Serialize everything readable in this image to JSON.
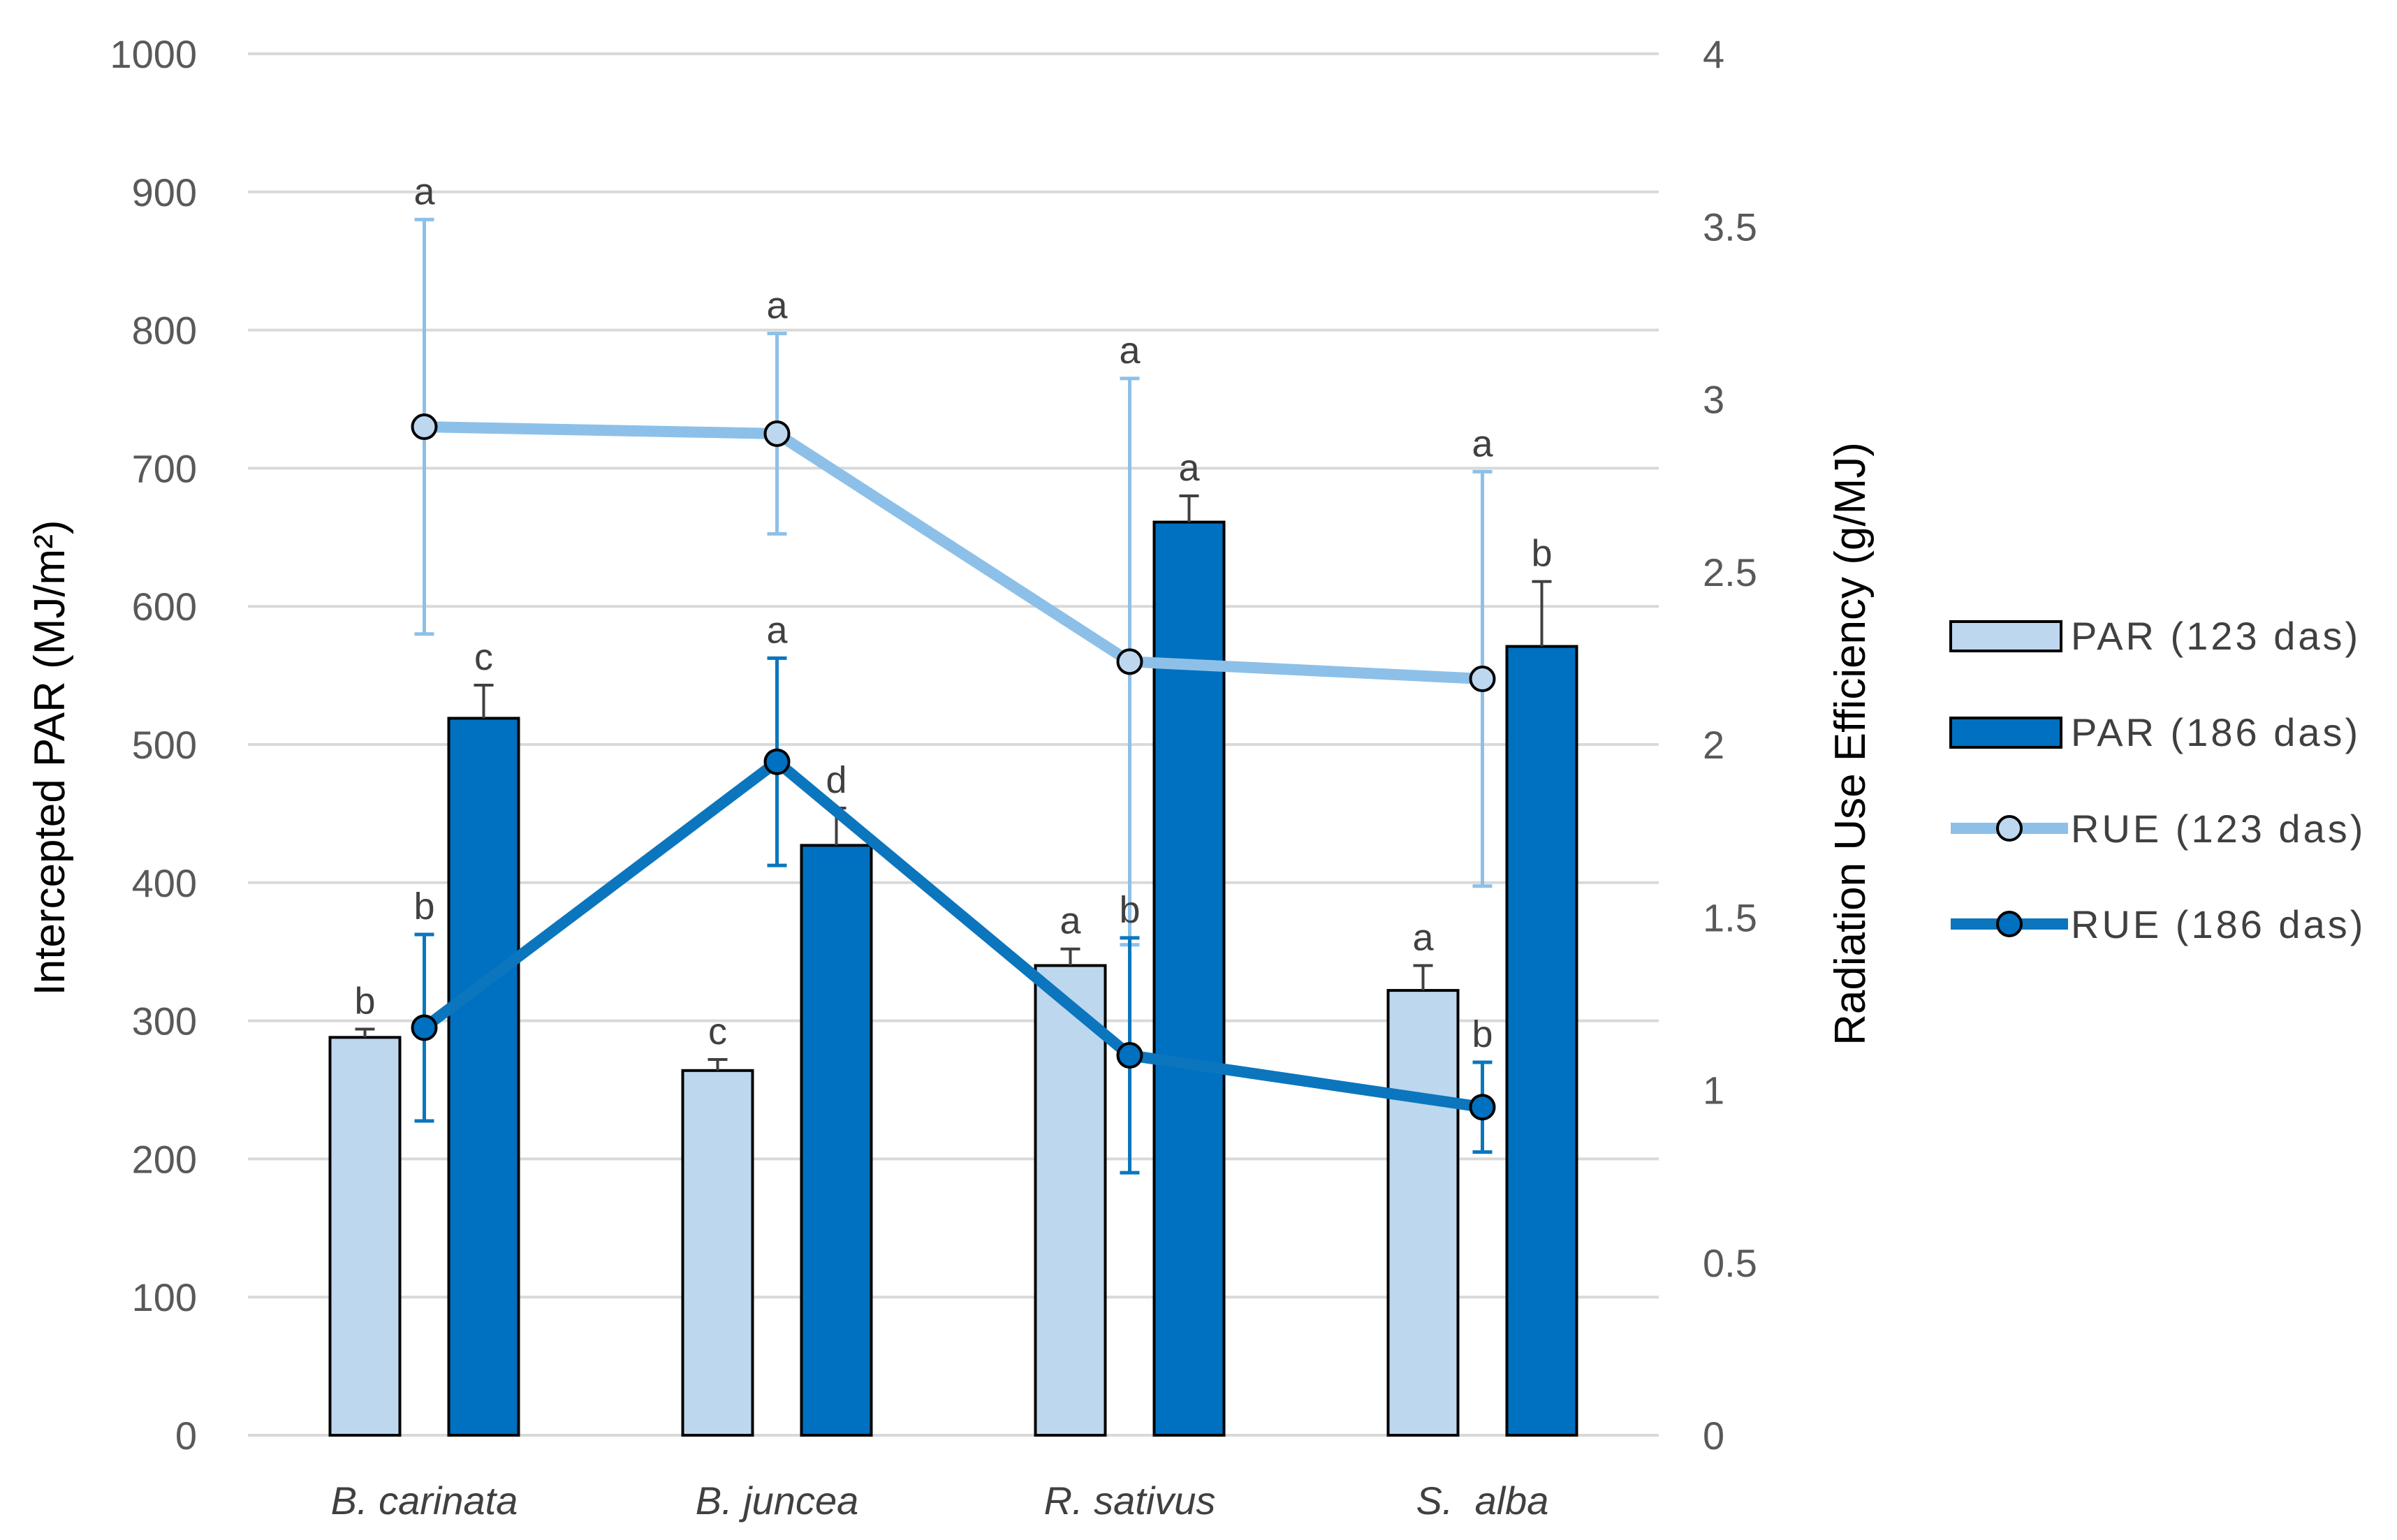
{
  "chart_data": {
    "type": "bar+line",
    "categories": [
      "B. carinata",
      "B. juncea",
      "R. sativus",
      "S.  alba"
    ],
    "left_axis": {
      "label": "Intercepted PAR (MJ/m²)",
      "ylim": [
        0,
        1000
      ],
      "ticks": [
        "0",
        "100",
        "200",
        "300",
        "400",
        "500",
        "600",
        "700",
        "800",
        "900",
        "1000"
      ]
    },
    "right_axis": {
      "label": "Radiation Use Efficiency (g/MJ)",
      "ylim": [
        0,
        4
      ],
      "ticks": [
        "0",
        "0.5",
        "1",
        "1.5",
        "2",
        "2.5",
        "3",
        "3.5",
        "4"
      ]
    },
    "grid": true,
    "legend_position": "right",
    "colors": {
      "light": "#BDD7EE",
      "dark": "#0070C0",
      "light_line": "#8DC0E8",
      "dark_line": "#0B76BD",
      "grid": "#D9D9D9",
      "errbar_dark": "#404040"
    },
    "bar_series": [
      {
        "name": "PAR (123 das)",
        "axis": "left",
        "values": [
          288,
          264,
          340,
          322
        ],
        "errors": [
          6,
          8,
          12,
          18
        ],
        "letters": [
          "b",
          "c",
          "a",
          "a"
        ]
      },
      {
        "name": "PAR (186 das)",
        "axis": "left",
        "values": [
          519,
          427,
          661,
          571
        ],
        "errors": [
          24,
          27,
          19,
          47
        ],
        "letters": [
          "c",
          "d",
          "a",
          "b"
        ]
      }
    ],
    "line_series": [
      {
        "name": "RUE (123 das)",
        "axis": "right",
        "values": [
          2.92,
          2.9,
          2.24,
          2.19
        ],
        "errors": [
          0.6,
          0.29,
          0.82,
          0.6
        ],
        "letters": [
          "a",
          "a",
          "a",
          "a"
        ]
      },
      {
        "name": "RUE (186 das)",
        "axis": "right",
        "values": [
          1.18,
          1.95,
          1.1,
          0.95
        ],
        "errors": [
          0.27,
          0.3,
          0.34,
          0.13
        ],
        "letters": [
          "b",
          "a",
          "b",
          "b"
        ]
      }
    ]
  }
}
